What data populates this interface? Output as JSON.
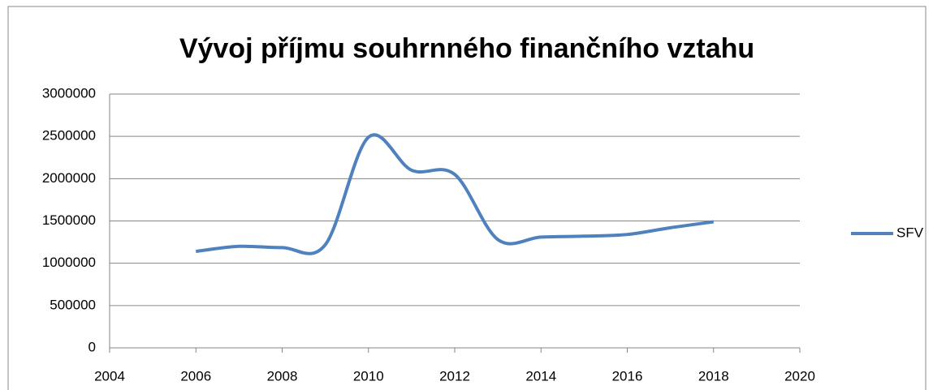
{
  "chart_data": {
    "type": "line",
    "title": "Vývoj příjmu souhrnného finančního vztahu",
    "x": [
      2006,
      2007,
      2008,
      2009,
      2010,
      2011,
      2012,
      2013,
      2014,
      2015,
      2016,
      2017,
      2018
    ],
    "series": [
      {
        "name": "SFV",
        "color": "#4f81bd",
        "values": [
          1140000,
          1200000,
          1185000,
          1220000,
          2490000,
          2100000,
          2050000,
          1280000,
          1310000,
          1320000,
          1340000,
          1420000,
          1490000
        ]
      }
    ],
    "xlim": [
      2004,
      2020
    ],
    "xticks": [
      2004,
      2006,
      2008,
      2010,
      2012,
      2014,
      2016,
      2018,
      2020
    ],
    "ylim": [
      0,
      3000000
    ],
    "yticks": [
      0,
      500000,
      1000000,
      1500000,
      2000000,
      2500000,
      3000000
    ],
    "grid": true,
    "legend": "right",
    "smooth": true
  }
}
